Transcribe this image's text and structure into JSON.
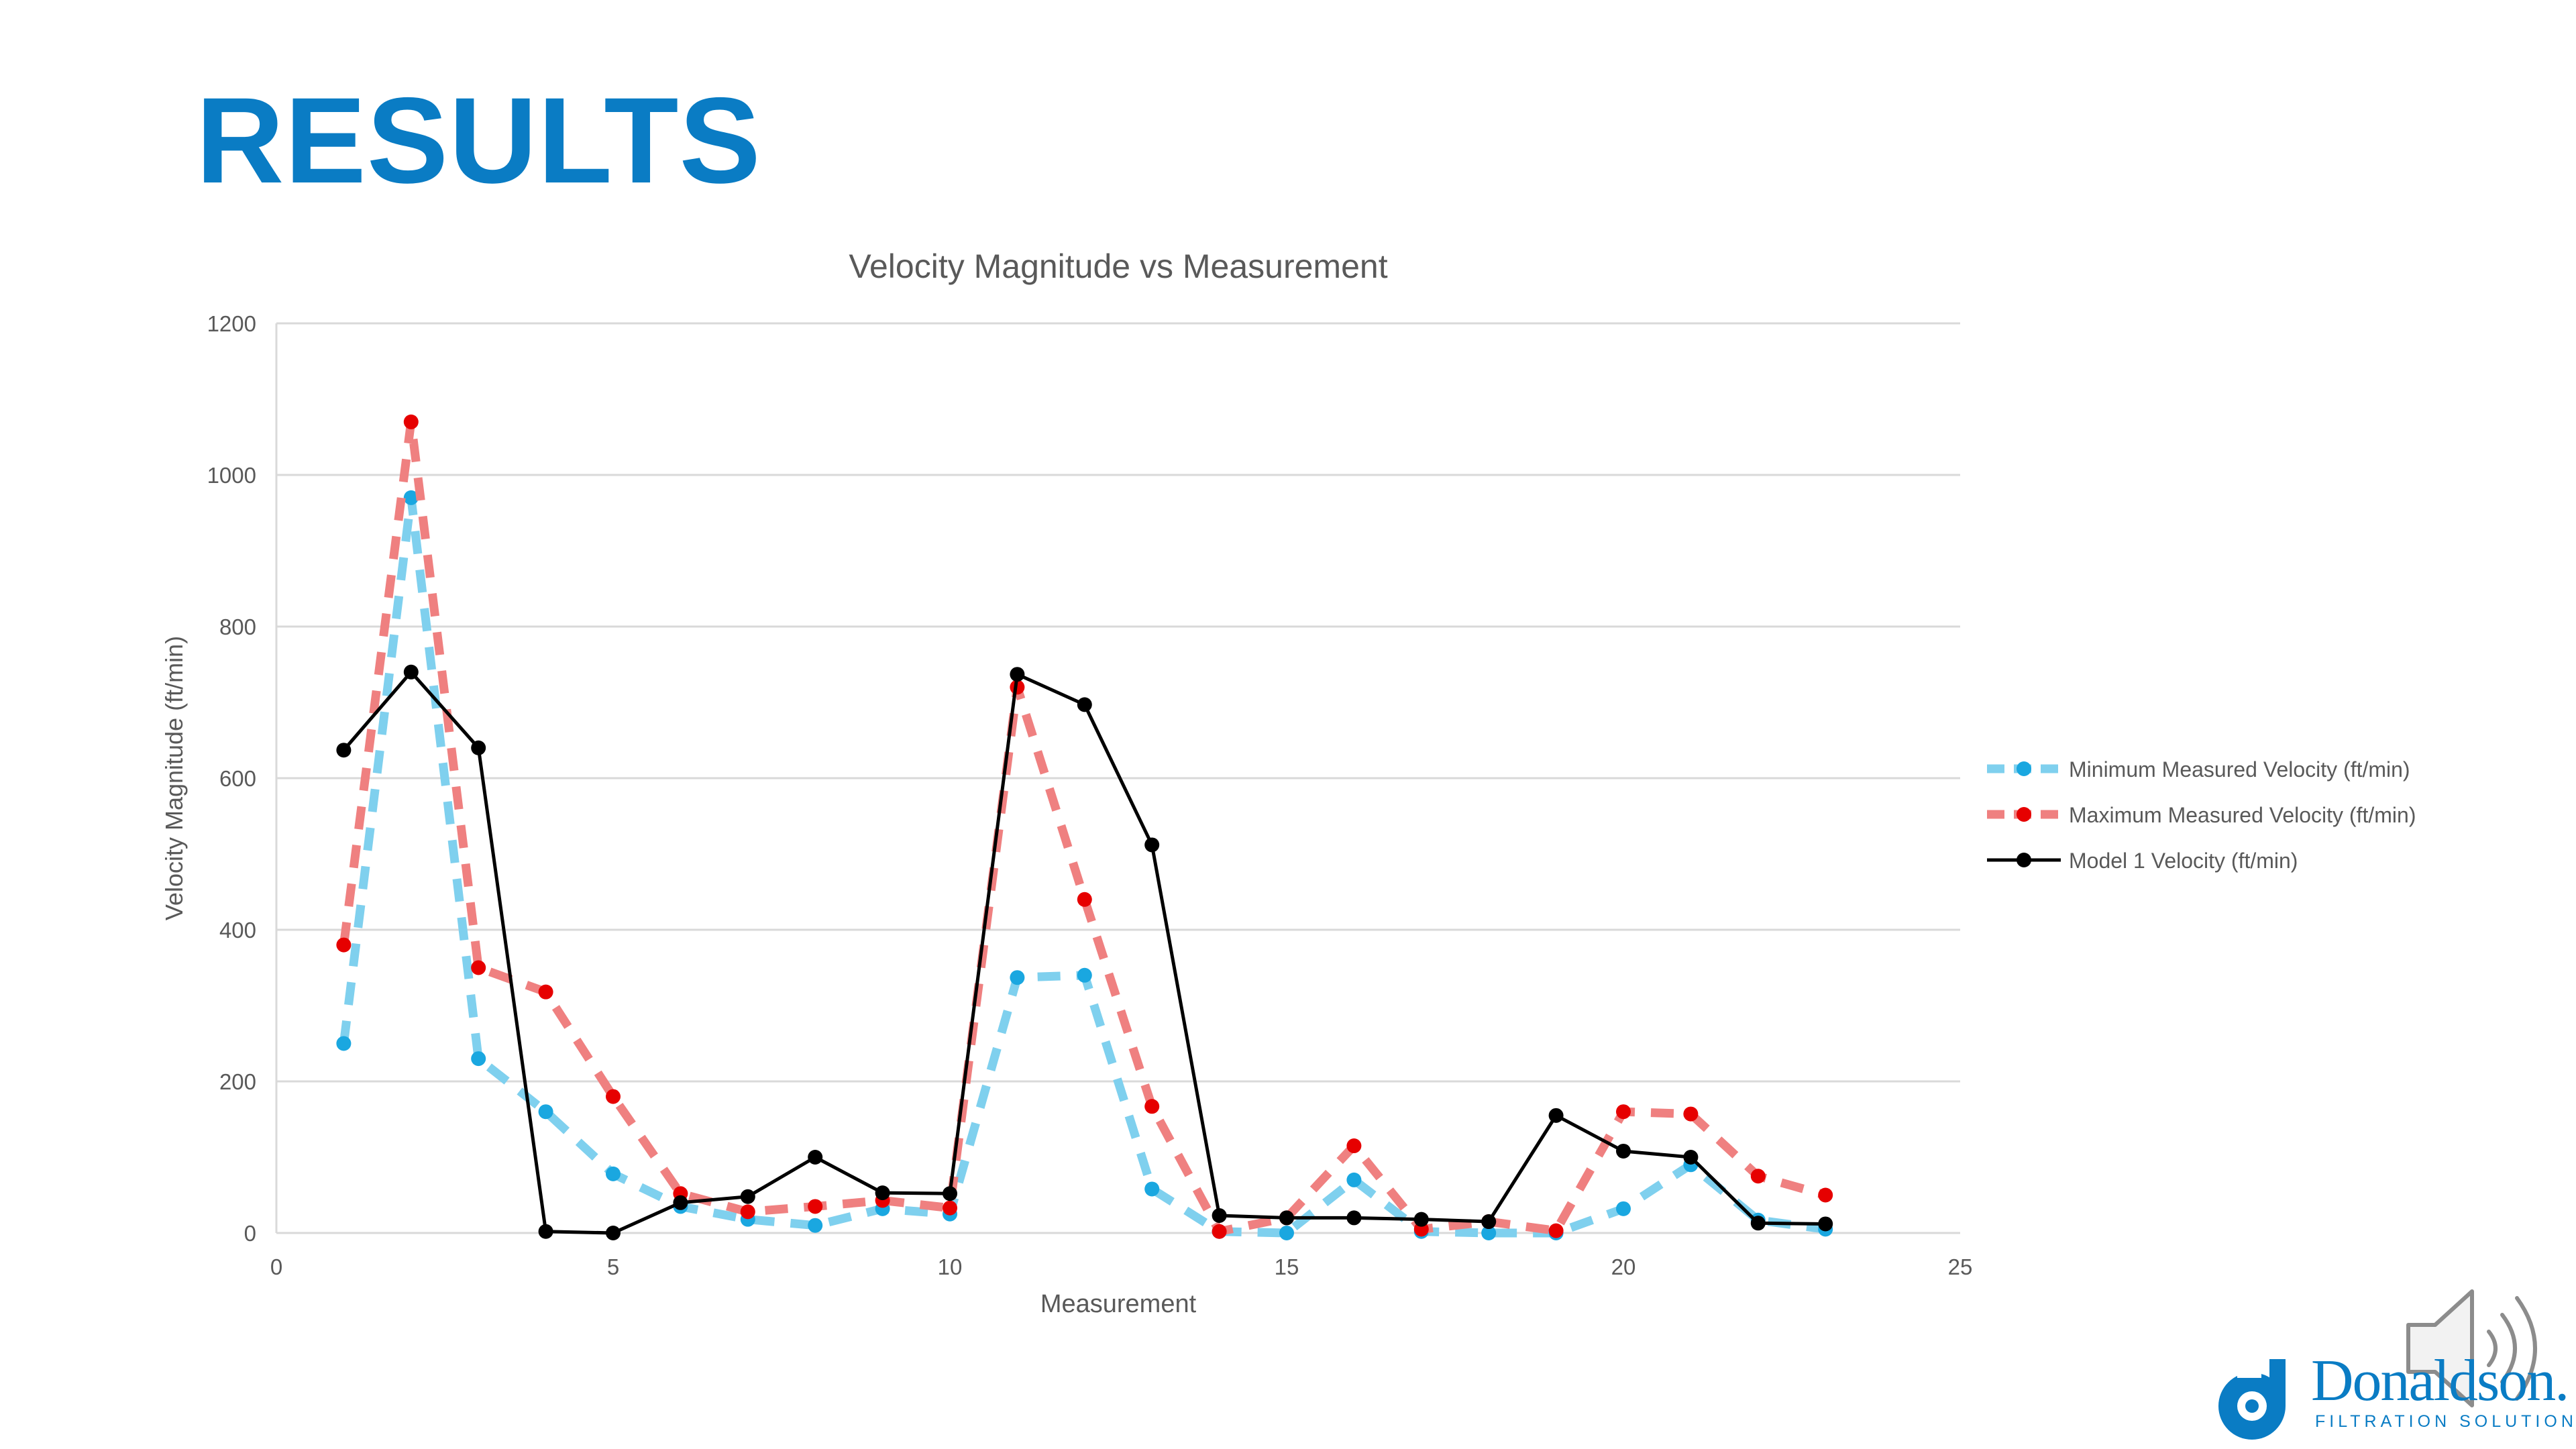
{
  "slide": {
    "title": "RESULTS"
  },
  "colors": {
    "title": "#0a7cc4",
    "minimum_series": "#7fd0ee",
    "minimum_marker": "#1aa7e0",
    "maximum_series": "#ef8080",
    "maximum_marker": "#e60000",
    "model_series": "#000000",
    "grid": "#d9d9d9",
    "axis_text": "#595959"
  },
  "brand": {
    "name": "Donaldson.",
    "tagline": "FILTRATION SOLUTIONS",
    "logo_icon": "donaldson-logo-icon"
  },
  "audio": {
    "icon": "speaker-icon"
  },
  "chart_data": {
    "type": "line",
    "title": "Velocity Magnitude vs Measurement",
    "xlabel": "Measurement",
    "ylabel": "Velocity Magnitude (ft/min)",
    "xlim": [
      0,
      25
    ],
    "ylim": [
      0,
      1200
    ],
    "xticks": [
      0,
      5,
      10,
      15,
      20,
      25
    ],
    "yticks": [
      0,
      200,
      400,
      600,
      800,
      1000,
      1200
    ],
    "grid": "horizontal",
    "legend_position": "right",
    "x": [
      1,
      2,
      3,
      4,
      5,
      6,
      7,
      8,
      9,
      10,
      11,
      12,
      13,
      14,
      15,
      16,
      17,
      18,
      19,
      20,
      21,
      22,
      23
    ],
    "series": [
      {
        "name": "Minimum Measured Velocity (ft/min)",
        "style": "dashed",
        "values": [
          250,
          970,
          230,
          160,
          78,
          35,
          18,
          10,
          32,
          25,
          337,
          340,
          58,
          2,
          0,
          70,
          2,
          0,
          0,
          32,
          90,
          17,
          5
        ]
      },
      {
        "name": "Maximum Measured Velocity (ft/min)",
        "style": "dashed",
        "values": [
          380,
          1070,
          350,
          318,
          180,
          52,
          28,
          35,
          43,
          33,
          720,
          440,
          167,
          2,
          20,
          115,
          5,
          15,
          3,
          160,
          157,
          75,
          50
        ]
      },
      {
        "name": "Model 1 Velocity (ft/min)",
        "style": "solid",
        "values": [
          637,
          740,
          640,
          2,
          0,
          40,
          48,
          100,
          53,
          52,
          737,
          697,
          512,
          23,
          20,
          20,
          18,
          15,
          155,
          108,
          100,
          13,
          12
        ]
      }
    ]
  }
}
